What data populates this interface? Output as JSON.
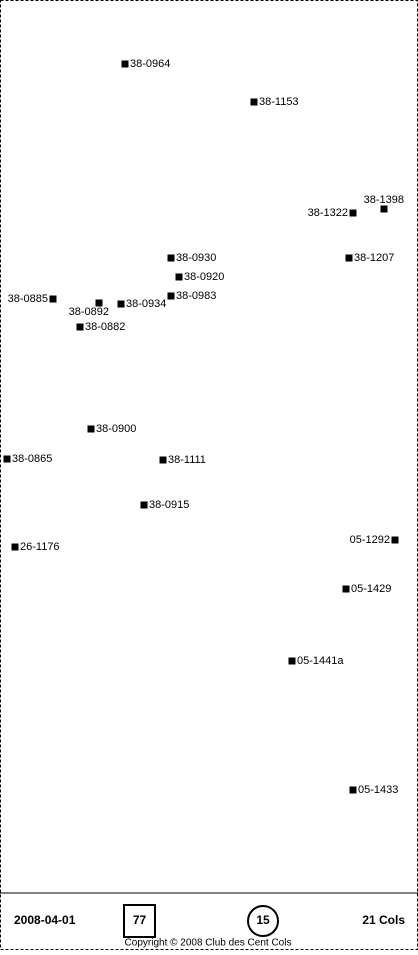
{
  "map": {
    "points": [
      {
        "label": "38-0964"
      },
      {
        "label": "38-1153"
      },
      {
        "label": "38-1398"
      },
      {
        "label": "38-1322"
      },
      {
        "label": "38-1207"
      },
      {
        "label": "38-0930"
      },
      {
        "label": "38-0920"
      },
      {
        "label": "38-0983"
      },
      {
        "label": "38-0885"
      },
      {
        "label": "38-0892"
      },
      {
        "label": "38-0934"
      },
      {
        "label": "38-0882"
      },
      {
        "label": "38-0900"
      },
      {
        "label": "38-0865"
      },
      {
        "label": "38-1111"
      },
      {
        "label": "38-0915"
      },
      {
        "label": "26-1176"
      },
      {
        "label": "05-1292"
      },
      {
        "label": "05-1429"
      },
      {
        "label": "05-1441a"
      },
      {
        "label": "05-1433"
      }
    ]
  },
  "footer": {
    "date": "2008-04-01",
    "box": 77,
    "circle": 15,
    "count": "21 Cols",
    "copyright": "Copyright © 2008 Club des Cent Cols"
  }
}
